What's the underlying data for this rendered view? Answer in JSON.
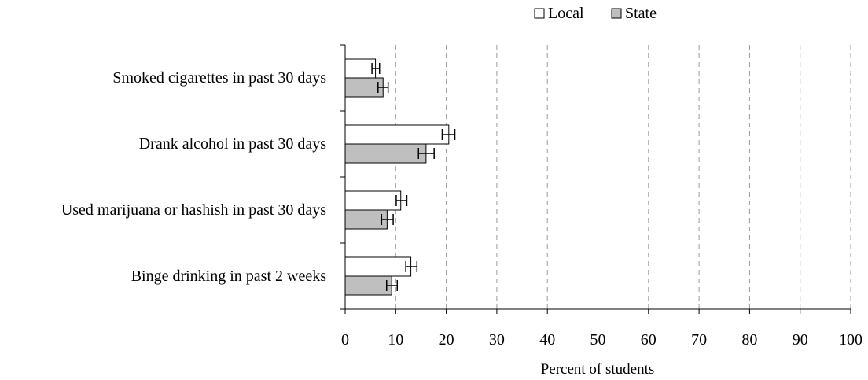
{
  "chart_data": {
    "type": "bar",
    "orientation": "horizontal",
    "categories": [
      "Smoked cigarettes in past 30 days",
      "Drank alcohol in past 30 days",
      "Used marijuana or hashish in past 30 days",
      "Binge drinking in past 2 weeks"
    ],
    "series": [
      {
        "name": "Local",
        "values": [
          6,
          20.5,
          11,
          13
        ],
        "error_low": [
          5.3,
          19.2,
          10.1,
          12.0
        ],
        "error_high": [
          6.8,
          21.7,
          12.2,
          14.2
        ],
        "color": "#ffffff"
      },
      {
        "name": "State",
        "values": [
          7.5,
          16,
          8.3,
          9.2
        ],
        "error_low": [
          6.5,
          14.5,
          7.2,
          8.2
        ],
        "error_high": [
          8.5,
          17.6,
          9.5,
          10.3
        ],
        "color": "#bfbfbf"
      }
    ],
    "xlabel": "Percent of students",
    "ylabel": "",
    "title": "",
    "xlim": [
      0,
      100
    ],
    "xticks": [
      0,
      10,
      20,
      30,
      40,
      50,
      60,
      70,
      80,
      90,
      100
    ],
    "grid": "vertical dashed",
    "legend": "top-right"
  }
}
